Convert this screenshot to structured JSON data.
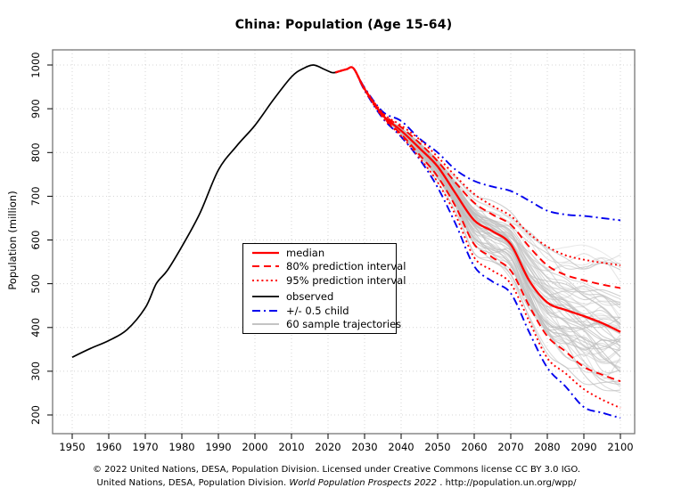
{
  "chart": {
    "title": "China: Population (Age 15-64)",
    "ylabel": "Population (million)"
  },
  "legend": {
    "items": [
      {
        "label": "median",
        "style": "solid-red"
      },
      {
        "label": "80% prediction interval",
        "style": "dashed-red"
      },
      {
        "label": "95% prediction interval",
        "style": "dotted-red"
      },
      {
        "label": "observed",
        "style": "solid-black"
      },
      {
        "label": "+/- 0.5 child",
        "style": "dashdot-blue"
      },
      {
        "label": "60 sample trajectories",
        "style": "solid-gray"
      }
    ]
  },
  "footer": {
    "line1": "© 2022 United Nations, DESA, Population Division. Licensed under Creative Commons license CC BY 3.0 IGO.",
    "line2_prefix": "United Nations, DESA, Population Division. ",
    "line2_italic": "World Population Prospects 2022",
    "line2_suffix": " . http://population.un.org/wpp/"
  },
  "colors": {
    "red": "#ff0000",
    "blue": "#0000ee",
    "black": "#000000",
    "gray_trajectory": "#bfbfbf",
    "gray_legend": "#b0b0b0",
    "grid": "#d4d4d4",
    "box": "#777777"
  },
  "chart_data": {
    "type": "line",
    "title": "China: Population (Age 15-64)",
    "xlabel": "",
    "ylabel": "Population (million)",
    "xlim": [
      1944,
      2106
    ],
    "ylim": [
      155,
      1035
    ],
    "grid": "dotted",
    "legend_position": "inside-center-left",
    "x_ticks": [
      1950,
      1960,
      1970,
      1980,
      1990,
      2000,
      2010,
      2020,
      2030,
      2040,
      2050,
      2060,
      2070,
      2080,
      2090,
      2100
    ],
    "y_ticks": [
      200,
      300,
      400,
      500,
      600,
      700,
      800,
      900,
      1000
    ],
    "observed": {
      "name": "observed",
      "style": "solid-black",
      "x": [
        1950,
        1955,
        1960,
        1965,
        1970,
        1973,
        1976,
        1980,
        1985,
        1990,
        1995,
        2000,
        2005,
        2010,
        2013,
        2016,
        2019,
        2021,
        2022
      ],
      "y": [
        332,
        352,
        370,
        395,
        445,
        500,
        530,
        585,
        662,
        760,
        815,
        862,
        920,
        973,
        991,
        1000,
        990,
        983,
        983
      ]
    },
    "projection_years": [
      2022,
      2025,
      2027,
      2030,
      2035,
      2040,
      2045,
      2050,
      2055,
      2060,
      2065,
      2070,
      2075,
      2080,
      2085,
      2090,
      2095,
      2100
    ],
    "series": [
      {
        "name": "median",
        "style": "solid-red",
        "values": [
          983,
          990,
          992,
          945,
          885,
          850,
          810,
          768,
          705,
          645,
          620,
          590,
          508,
          457,
          440,
          426,
          410,
          390
        ]
      },
      {
        "name": "pi80_upper",
        "style": "dashed-red",
        "values": [
          983,
          990,
          992,
          946,
          888,
          858,
          822,
          780,
          730,
          685,
          658,
          635,
          585,
          542,
          520,
          508,
          498,
          490
        ]
      },
      {
        "name": "pi80_lower",
        "style": "dashed-red",
        "values": [
          983,
          990,
          992,
          944,
          882,
          842,
          795,
          745,
          675,
          590,
          560,
          530,
          450,
          380,
          345,
          310,
          292,
          277
        ]
      },
      {
        "name": "pi95_upper",
        "style": "dotted-red",
        "values": [
          983,
          990,
          992,
          947,
          890,
          862,
          830,
          790,
          745,
          705,
          678,
          655,
          615,
          585,
          565,
          555,
          548,
          542
        ]
      },
      {
        "name": "pi95_lower",
        "style": "dotted-red",
        "values": [
          983,
          990,
          992,
          943,
          880,
          838,
          788,
          732,
          655,
          560,
          530,
          500,
          415,
          330,
          295,
          259,
          235,
          216
        ]
      },
      {
        "name": "plus_half_child",
        "style": "dashdot-blue",
        "values": [
          983,
          990,
          992,
          948,
          893,
          872,
          832,
          800,
          760,
          735,
          722,
          712,
          690,
          667,
          658,
          655,
          650,
          645
        ]
      },
      {
        "name": "minus_half_child",
        "style": "dashdot-blue",
        "values": [
          983,
          990,
          992,
          942,
          878,
          836,
          785,
          720,
          635,
          540,
          505,
          478,
          390,
          308,
          265,
          218,
          205,
          193
        ]
      }
    ],
    "sample_trajectories": {
      "count": 60,
      "style": "solid-gray"
    }
  }
}
